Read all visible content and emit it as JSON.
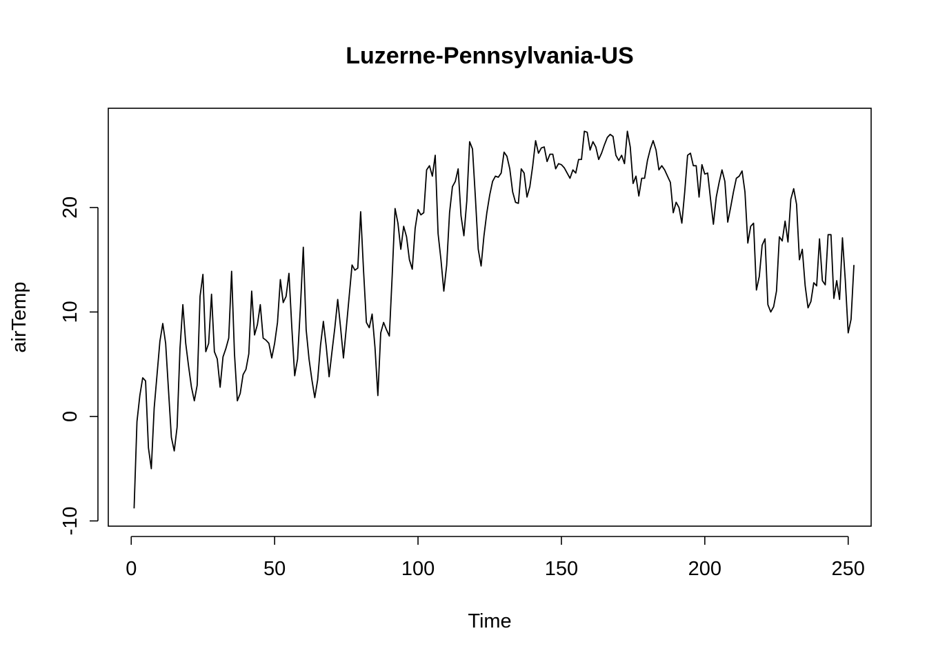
{
  "chart_data": {
    "type": "line",
    "title": "Luzerne-Pennsylvania-US",
    "xlabel": "Time",
    "ylabel": "airTemp",
    "xlim": [
      -8,
      258
    ],
    "ylim": [
      -10.5,
      29.5
    ],
    "x_ticks": [
      {
        "value": 0,
        "label": "0"
      },
      {
        "value": 50,
        "label": "50"
      },
      {
        "value": 100,
        "label": "100"
      },
      {
        "value": 150,
        "label": "150"
      },
      {
        "value": 200,
        "label": "200"
      },
      {
        "value": 250,
        "label": "250"
      }
    ],
    "y_ticks": [
      {
        "value": -10,
        "label": "-10"
      },
      {
        "value": 0,
        "label": "0"
      },
      {
        "value": 10,
        "label": "10"
      },
      {
        "value": 20,
        "label": "20"
      }
    ],
    "grid": false,
    "legend": "none",
    "series": [
      {
        "x_start": 1,
        "values": [
          -8.8,
          -0.5,
          2.0,
          3.7,
          3.4,
          -3.0,
          -5.0,
          0.8,
          4.0,
          7.2,
          8.9,
          7.0,
          2.5,
          -2.0,
          -3.3,
          -1.0,
          6.5,
          10.7,
          7.0,
          4.8,
          2.8,
          1.5,
          3.0,
          11.5,
          13.6,
          6.2,
          7.0,
          11.7,
          6.2,
          5.5,
          2.8,
          5.7,
          6.5,
          7.5,
          13.9,
          6.0,
          1.5,
          2.2,
          4.0,
          4.5,
          6.0,
          12.0,
          7.8,
          8.8,
          10.7,
          7.5,
          7.3,
          7.0,
          5.6,
          7.0,
          9.0,
          13.1,
          10.9,
          11.5,
          13.7,
          8.5,
          3.9,
          5.5,
          10.5,
          16.2,
          8.3,
          5.5,
          3.5,
          1.8,
          3.5,
          6.8,
          9.1,
          6.7,
          3.8,
          6.2,
          8.5,
          11.2,
          8.5,
          5.6,
          8.5,
          11.5,
          14.5,
          14.0,
          14.2,
          19.6,
          14.0,
          9.0,
          8.5,
          9.8,
          6.6,
          2.0,
          8.0,
          9.0,
          8.3,
          7.7,
          13.5,
          19.9,
          18.5,
          16.0,
          18.2,
          17.2,
          15.0,
          14.1,
          18.0,
          19.8,
          19.3,
          19.5,
          23.6,
          24.0,
          23.0,
          25.0,
          17.5,
          15.0,
          12.0,
          14.5,
          19.5,
          22.0,
          22.5,
          23.7,
          19.2,
          17.3,
          20.6,
          26.3,
          25.6,
          21.0,
          16.0,
          14.4,
          17.3,
          19.5,
          21.2,
          22.5,
          23.0,
          22.9,
          23.3,
          25.3,
          24.9,
          23.7,
          21.5,
          20.5,
          20.4,
          23.7,
          23.3,
          21.0,
          22.0,
          24.0,
          26.4,
          25.2,
          25.7,
          25.8,
          24.4,
          25.1,
          25.1,
          23.7,
          24.2,
          24.1,
          23.8,
          23.3,
          22.8,
          23.6,
          23.3,
          24.6,
          24.6,
          27.3,
          27.2,
          25.5,
          26.3,
          25.8,
          24.6,
          25.2,
          26.0,
          26.7,
          27.0,
          26.8,
          25.0,
          24.5,
          25.0,
          24.2,
          27.3,
          25.8,
          22.3,
          23.0,
          21.1,
          22.8,
          22.8,
          24.5,
          25.6,
          26.4,
          25.5,
          23.6,
          24.0,
          23.6,
          23.0,
          22.4,
          19.5,
          20.5,
          20.0,
          18.5,
          21.5,
          25.0,
          25.2,
          24.0,
          24.0,
          21.0,
          24.1,
          23.2,
          23.3,
          20.8,
          18.4,
          21.0,
          22.4,
          23.6,
          22.5,
          18.6,
          20.0,
          21.5,
          22.8,
          23.0,
          23.5,
          21.5,
          16.6,
          18.2,
          18.5,
          12.1,
          13.4,
          16.4,
          17.0,
          10.7,
          10.0,
          10.5,
          12.0,
          17.2,
          16.8,
          18.7,
          16.7,
          20.8,
          21.8,
          20.3,
          15.0,
          16.0,
          12.5,
          10.4,
          11.0,
          12.8,
          12.5,
          17.0,
          13.0,
          12.6,
          17.4,
          17.4,
          11.3,
          13.0,
          11.2,
          17.1,
          13.0,
          8.0,
          9.3,
          14.5
        ]
      }
    ]
  }
}
